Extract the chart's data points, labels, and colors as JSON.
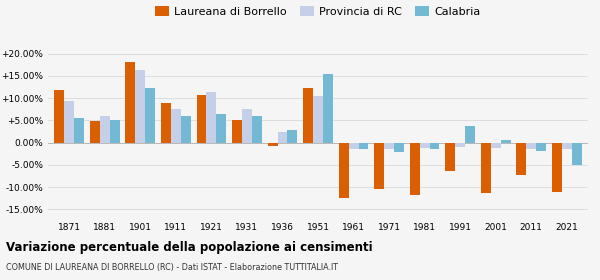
{
  "years": [
    1871,
    1881,
    1901,
    1911,
    1921,
    1931,
    1936,
    1951,
    1961,
    1971,
    1981,
    1991,
    2001,
    2011,
    2021
  ],
  "laureana": [
    11.8,
    4.8,
    18.2,
    9.0,
    10.8,
    5.1,
    -0.8,
    12.2,
    -12.5,
    -10.5,
    -11.8,
    -6.3,
    -11.3,
    -7.2,
    -11.0
  ],
  "provincia": [
    9.3,
    6.1,
    16.3,
    7.6,
    11.4,
    7.6,
    2.5,
    10.6,
    -1.5,
    -1.3,
    -1.2,
    -1.0,
    -1.1,
    -1.3,
    -1.5
  ],
  "calabria": [
    5.5,
    5.0,
    12.2,
    6.0,
    6.5,
    6.0,
    2.8,
    15.5,
    -1.5,
    -2.0,
    -1.5,
    3.8,
    0.7,
    -1.8,
    -5.0
  ],
  "laureana_color": "#d95f02",
  "provincia_color": "#c6cfe8",
  "calabria_color": "#74b9d4",
  "title1": "Variazione percentuale della popolazione ai censimenti",
  "title2": "COMUNE DI LAUREANA DI BORRELLO (RC) - Dati ISTAT - Elaborazione TUTTITALIA.IT",
  "legend_labels": [
    "Laureana di Borrello",
    "Provincia di RC",
    "Calabria"
  ],
  "ylim": [
    -17,
    22
  ],
  "yticks": [
    -15,
    -10,
    -5,
    0,
    5,
    10,
    15,
    20
  ],
  "ytick_labels": [
    "-15.00%",
    "-10.00%",
    "-5.00%",
    "0.00%",
    "+5.00%",
    "+10.00%",
    "+15.00%",
    "+20.00%"
  ],
  "bar_width": 0.28,
  "bg_color": "#f5f5f5",
  "grid_color": "#dddddd"
}
